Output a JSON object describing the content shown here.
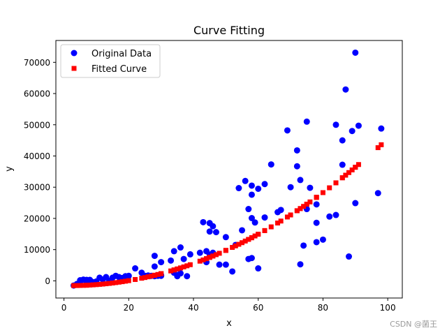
{
  "chart_data": {
    "type": "scatter",
    "title": "Curve Fitting",
    "xlabel": "x",
    "ylabel": "y",
    "xlim": [
      -2.5,
      104.5
    ],
    "ylim": [
      -5500,
      77000
    ],
    "xticks": [
      0,
      20,
      40,
      60,
      80,
      100
    ],
    "yticks": [
      0,
      10000,
      20000,
      30000,
      40000,
      50000,
      60000,
      70000
    ],
    "grid": false,
    "legend_position": "upper-left",
    "series": [
      {
        "name": "Original Data",
        "marker": "circle",
        "color": "#0000ff",
        "points": [
          [
            3,
            -1500
          ],
          [
            4,
            -1000
          ],
          [
            5,
            200
          ],
          [
            5,
            -200
          ],
          [
            6,
            400
          ],
          [
            7,
            -300
          ],
          [
            7,
            300
          ],
          [
            8,
            300
          ],
          [
            9,
            -400
          ],
          [
            10,
            -200
          ],
          [
            11,
            1000
          ],
          [
            12,
            400
          ],
          [
            13,
            1200
          ],
          [
            14,
            0
          ],
          [
            15,
            1000
          ],
          [
            16,
            1600
          ],
          [
            17,
            1200
          ],
          [
            18,
            900
          ],
          [
            19,
            1500
          ],
          [
            20,
            1600
          ],
          [
            22,
            4000
          ],
          [
            24,
            2600
          ],
          [
            25,
            1600
          ],
          [
            26,
            1700
          ],
          [
            27,
            1600
          ],
          [
            28,
            4600
          ],
          [
            28,
            1500
          ],
          [
            28,
            8000
          ],
          [
            29,
            1600
          ],
          [
            30,
            1800
          ],
          [
            30,
            1600
          ],
          [
            30,
            6000
          ],
          [
            33,
            6500
          ],
          [
            34,
            2600
          ],
          [
            34,
            9500
          ],
          [
            35,
            1800
          ],
          [
            35,
            1500
          ],
          [
            36,
            10700
          ],
          [
            36,
            2400
          ],
          [
            37,
            7000
          ],
          [
            38,
            1500
          ],
          [
            39,
            8500
          ],
          [
            42,
            9000
          ],
          [
            43,
            18800
          ],
          [
            44,
            9500
          ],
          [
            44,
            6000
          ],
          [
            45,
            15800
          ],
          [
            45,
            18500
          ],
          [
            45,
            8400
          ],
          [
            46,
            17500
          ],
          [
            46,
            9000
          ],
          [
            47,
            15600
          ],
          [
            48,
            5200
          ],
          [
            50,
            14000
          ],
          [
            50,
            5200
          ],
          [
            52,
            3000
          ],
          [
            53,
            11500
          ],
          [
            54,
            29700
          ],
          [
            55,
            16200
          ],
          [
            56,
            32000
          ],
          [
            57,
            23000
          ],
          [
            57,
            7000
          ],
          [
            58,
            30500
          ],
          [
            58,
            27600
          ],
          [
            58,
            20100
          ],
          [
            58,
            7300
          ],
          [
            59,
            18700
          ],
          [
            60,
            29500
          ],
          [
            60,
            4000
          ],
          [
            62,
            31000
          ],
          [
            62,
            20300
          ],
          [
            64,
            37300
          ],
          [
            66,
            22000
          ],
          [
            67,
            22700
          ],
          [
            69,
            48200
          ],
          [
            70,
            30000
          ],
          [
            72,
            41800
          ],
          [
            72,
            36700
          ],
          [
            73,
            32300
          ],
          [
            73,
            5300
          ],
          [
            74,
            11300
          ],
          [
            75,
            51000
          ],
          [
            75,
            23000
          ],
          [
            76,
            29800
          ],
          [
            78,
            24500
          ],
          [
            78,
            18600
          ],
          [
            78,
            12400
          ],
          [
            80,
            13200
          ],
          [
            82,
            20600
          ],
          [
            84,
            50000
          ],
          [
            84,
            21100
          ],
          [
            86,
            45000
          ],
          [
            86,
            37200
          ],
          [
            87,
            61300
          ],
          [
            88,
            7800
          ],
          [
            89,
            48000
          ],
          [
            90,
            73100
          ],
          [
            90,
            24900
          ],
          [
            91,
            49700
          ],
          [
            97,
            28100
          ],
          [
            98,
            48800
          ]
        ]
      },
      {
        "name": "Fitted Curve",
        "marker": "square",
        "color": "#ff0000"
      }
    ]
  },
  "watermark": "CSDN @菌王"
}
